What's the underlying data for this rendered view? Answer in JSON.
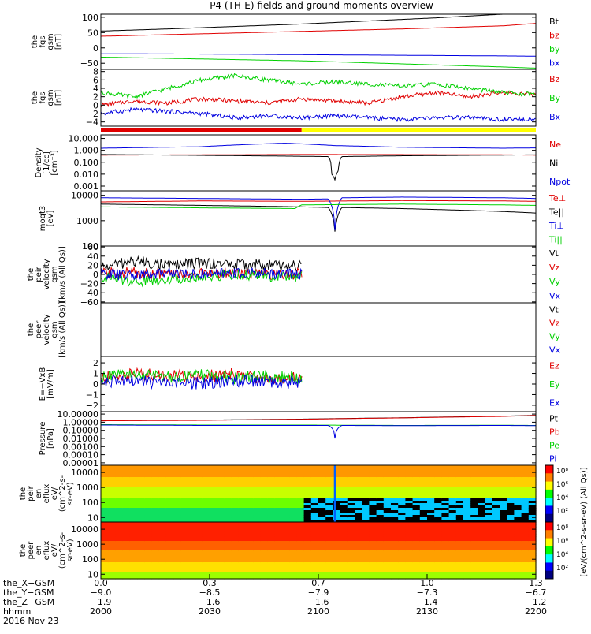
{
  "title": "P4 (TH-E) fields and ground moments overview",
  "date_label": "2016 Nov 23",
  "colors": {
    "black": "#000000",
    "red": "#e00000",
    "green": "#00d000",
    "blue": "#0000e0",
    "yellow": "#ffff00"
  },
  "chart_data": [
    {
      "id": "fgs",
      "type": "line",
      "ylabel": [
        "the",
        "fgs",
        "gsm",
        "[nT]"
      ],
      "ylim": [
        -70,
        110
      ],
      "yticks": [
        {
          "v": 100,
          "t": "100"
        },
        {
          "v": 50,
          "t": "50"
        },
        {
          "v": 0,
          "t": "0"
        },
        {
          "v": -50,
          "t": "−50"
        }
      ],
      "series": [
        {
          "name": "Bt",
          "color": "black",
          "x": [
            0,
            0.2,
            0.4,
            0.6,
            0.8,
            1.0,
            1.1,
            1.2
          ],
          "y": [
            55,
            62,
            70,
            78,
            88,
            98,
            104,
            110
          ]
        },
        {
          "name": "bz",
          "color": "red",
          "x": [
            0,
            0.3,
            0.6,
            0.9,
            1.2,
            1.3
          ],
          "y": [
            38,
            46,
            54,
            62,
            72,
            80
          ]
        },
        {
          "name": "by",
          "color": "green",
          "x": [
            0,
            0.3,
            0.6,
            0.9,
            1.2,
            1.3
          ],
          "y": [
            -30,
            -36,
            -42,
            -52,
            -62,
            -66
          ]
        },
        {
          "name": "bx",
          "color": "blue",
          "x": [
            0,
            0.3,
            0.6,
            0.9,
            1.2,
            1.3
          ],
          "y": [
            -19,
            -20,
            -22,
            -24,
            -26,
            -27
          ]
        }
      ]
    },
    {
      "id": "fgs_dsl",
      "type": "line",
      "ylabel": [
        "the",
        "fgs",
        "gsm",
        "[nT]"
      ],
      "ylim": [
        -5,
        8.5
      ],
      "yticks": [
        {
          "v": 8,
          "t": "8"
        },
        {
          "v": 6,
          "t": "6"
        },
        {
          "v": 4,
          "t": "4"
        },
        {
          "v": 2,
          "t": "2"
        },
        {
          "v": 0,
          "t": "0"
        },
        {
          "v": -2,
          "t": "−2"
        },
        {
          "v": -4,
          "t": "−4"
        }
      ],
      "series": [
        {
          "name": "Bz",
          "color": "red",
          "x": [
            0,
            0.1,
            0.2,
            0.3,
            0.4,
            0.5,
            0.6,
            0.7,
            0.8,
            0.9,
            1.0,
            1.1,
            1.2,
            1.3
          ],
          "y": [
            0,
            1,
            0.5,
            1.5,
            1,
            0.5,
            1.5,
            1,
            0.5,
            2,
            3,
            2,
            3,
            2.5
          ]
        },
        {
          "name": "By",
          "color": "green",
          "x": [
            0,
            0.1,
            0.2,
            0.3,
            0.4,
            0.5,
            0.6,
            0.7,
            0.8,
            0.9,
            1.0,
            1.1,
            1.2,
            1.3
          ],
          "y": [
            3,
            2,
            4,
            6,
            7,
            6,
            5,
            5.5,
            5,
            4.5,
            5,
            4,
            3,
            2.5
          ]
        },
        {
          "name": "Bx",
          "color": "blue",
          "x": [
            0,
            0.1,
            0.2,
            0.3,
            0.4,
            0.5,
            0.6,
            0.7,
            0.8,
            0.9,
            1.0,
            1.1,
            1.2,
            1.3
          ],
          "y": [
            -2,
            -1,
            -1.5,
            -2,
            -3,
            -2.5,
            -3,
            -2.5,
            -3,
            -3.5,
            -3,
            -3,
            -3.5,
            -3.2
          ]
        }
      ]
    },
    {
      "id": "density",
      "type": "line",
      "log": true,
      "ylabel": [
        "Density",
        "[1/cc]",
        "[cm⁻³]"
      ],
      "ylim": [
        0.0004,
        20
      ],
      "yticks": [
        {
          "v": 10,
          "t": "10.000"
        },
        {
          "v": 1,
          "t": "1.000"
        },
        {
          "v": 0.1,
          "t": "0.100"
        },
        {
          "v": 0.01,
          "t": "0.010"
        },
        {
          "v": 0.001,
          "t": "0.001"
        }
      ],
      "series": [
        {
          "name": "Ne",
          "color": "red",
          "x": [
            0,
            0.3,
            0.6,
            0.9,
            1.2,
            1.3
          ],
          "y": [
            0.4,
            0.42,
            0.45,
            0.44,
            0.42,
            0.4
          ]
        },
        {
          "name": "Ni",
          "color": "black",
          "x": [
            0,
            0.3,
            0.55,
            0.68,
            0.69,
            0.7,
            0.71,
            0.72,
            0.9,
            1.2,
            1.3
          ],
          "y": [
            0.45,
            0.38,
            0.33,
            0.3,
            0.01,
            0.003,
            0.02,
            0.3,
            0.35,
            0.4,
            0.42
          ]
        },
        {
          "name": "Npot",
          "color": "blue",
          "x": [
            0,
            0.3,
            0.55,
            0.7,
            0.9,
            1.2,
            1.3
          ],
          "y": [
            1.5,
            2,
            4,
            2.5,
            1.8,
            1.5,
            1.6
          ]
        }
      ]
    },
    {
      "id": "temp",
      "type": "line",
      "log": true,
      "ylabel": [
        "moqt3",
        "[eV]"
      ],
      "ylim": [
        100,
        15000
      ],
      "yticks": [
        {
          "v": 10000,
          "t": "10000"
        },
        {
          "v": 1000,
          "t": "1000"
        },
        {
          "v": 100,
          "t": "100"
        }
      ],
      "series": [
        {
          "name": "Te⊥",
          "color": "red",
          "x": [
            0,
            0.3,
            0.6,
            0.9,
            1.2,
            1.3
          ],
          "y": [
            5500,
            6000,
            5800,
            6200,
            6000,
            5800
          ]
        },
        {
          "name": "Te||",
          "color": "black",
          "x": [
            0,
            0.3,
            0.6,
            0.68,
            0.7,
            0.72,
            0.9,
            1.2,
            1.3
          ],
          "y": [
            4500,
            4000,
            3500,
            3300,
            300,
            3300,
            3000,
            2300,
            2000
          ]
        },
        {
          "name": "Ti⊥",
          "color": "blue",
          "x": [
            0,
            0.3,
            0.6,
            0.68,
            0.7,
            0.72,
            0.9,
            1.2,
            1.3
          ],
          "y": [
            8000,
            7500,
            7000,
            7200,
            250,
            8000,
            8500,
            8000,
            7500
          ]
        },
        {
          "name": "Ti||",
          "color": "green",
          "x": [
            0,
            0.3,
            0.58,
            0.6,
            0.9,
            1.2,
            1.3
          ],
          "y": [
            3500,
            3200,
            3000,
            4200,
            4500,
            4200,
            4000
          ]
        }
      ]
    },
    {
      "id": "peir_vel",
      "type": "line",
      "ylabel": [
        "the",
        "peir",
        "velocity",
        "gsm",
        "[km/s (All Qs)]"
      ],
      "ylim": [
        -62,
        62
      ],
      "yticks": [
        {
          "v": 60,
          "t": "60"
        },
        {
          "v": 40,
          "t": "40"
        },
        {
          "v": 20,
          "t": "20"
        },
        {
          "v": 0,
          "t": "0"
        },
        {
          "v": -20,
          "t": "−20"
        },
        {
          "v": -40,
          "t": "−40"
        },
        {
          "v": -60,
          "t": "−60"
        }
      ],
      "xmax_data": 0.6,
      "series": [
        {
          "name": "Vt",
          "color": "black",
          "x": [
            0,
            0.1,
            0.2,
            0.3,
            0.4,
            0.5,
            0.6
          ],
          "y": [
            15,
            30,
            20,
            25,
            22,
            20,
            18
          ]
        },
        {
          "name": "Vz",
          "color": "red",
          "x": [
            0,
            0.1,
            0.2,
            0.3,
            0.4,
            0.5,
            0.6
          ],
          "y": [
            3,
            5,
            0,
            2,
            4,
            -2,
            2
          ]
        },
        {
          "name": "Vy",
          "color": "green",
          "x": [
            0,
            0.1,
            0.2,
            0.3,
            0.4,
            0.5,
            0.6
          ],
          "y": [
            -5,
            -15,
            -10,
            -5,
            0,
            -3,
            -5
          ]
        },
        {
          "name": "Vx",
          "color": "blue",
          "x": [
            0,
            0.1,
            0.2,
            0.3,
            0.4,
            0.5,
            0.6
          ],
          "y": [
            2,
            -3,
            5,
            0,
            3,
            2,
            1
          ]
        }
      ]
    },
    {
      "id": "peer_vel",
      "type": "line",
      "ylabel": [
        "the",
        "peer",
        "velocity",
        "gsm",
        "[km/s (All Qs)]"
      ],
      "ylim": [
        0,
        1
      ],
      "yticks": [],
      "series": [
        {
          "name": "Vt",
          "color": "black"
        },
        {
          "name": "Vz",
          "color": "red"
        },
        {
          "name": "Vy",
          "color": "green"
        },
        {
          "name": "Vx",
          "color": "blue"
        }
      ]
    },
    {
      "id": "exb",
      "type": "line",
      "ylabel": [
        "E=−VxB",
        "[mV/m]"
      ],
      "ylim": [
        -2.6,
        2.6
      ],
      "yticks": [
        {
          "v": 2,
          "t": "2"
        },
        {
          "v": 1,
          "t": "1"
        },
        {
          "v": 0,
          "t": "0"
        },
        {
          "v": -1,
          "t": "−1"
        },
        {
          "v": -2,
          "t": "−2"
        }
      ],
      "xmax_data": 0.6,
      "series": [
        {
          "name": "Ez",
          "color": "red",
          "x": [
            0,
            0.1,
            0.2,
            0.3,
            0.4,
            0.5,
            0.6
          ],
          "y": [
            0.5,
            1,
            0.8,
            0.7,
            0.9,
            0.5,
            0.8
          ]
        },
        {
          "name": "Ey",
          "color": "green",
          "x": [
            0,
            0.1,
            0.2,
            0.3,
            0.4,
            0.5,
            0.6
          ],
          "y": [
            0.6,
            0.9,
            0.7,
            0.8,
            0.6,
            0.7,
            0.5
          ]
        },
        {
          "name": "Ex",
          "color": "blue",
          "x": [
            0,
            0.1,
            0.2,
            0.3,
            0.4,
            0.5,
            0.6
          ],
          "y": [
            0.2,
            0.3,
            0,
            0.1,
            0.3,
            0.2,
            0.1
          ]
        }
      ]
    },
    {
      "id": "pressure",
      "type": "line",
      "log": true,
      "ylabel": [
        "Pressure",
        "[nPa]"
      ],
      "ylim": [
        5e-06,
        20
      ],
      "yticks": [
        {
          "v": 10,
          "t": "10.00000"
        },
        {
          "v": 1,
          "t": "1.00000"
        },
        {
          "v": 0.1,
          "t": "0.10000"
        },
        {
          "v": 0.01,
          "t": "0.01000"
        },
        {
          "v": 0.001,
          "t": "0.00100"
        },
        {
          "v": 0.0001,
          "t": "0.00010"
        },
        {
          "v": 1e-05,
          "t": "0.00001"
        }
      ],
      "series": [
        {
          "name": "Pt",
          "color": "black",
          "x": [
            0,
            0.3,
            0.6,
            0.9,
            1.2,
            1.3
          ],
          "y": [
            1.6,
            1.8,
            2.4,
            3.5,
            5.5,
            7
          ]
        },
        {
          "name": "Pb",
          "color": "red",
          "x": [
            0,
            0.3,
            0.6,
            0.9,
            1.2,
            1.3
          ],
          "y": [
            1.5,
            1.7,
            2.3,
            3.4,
            5.2,
            6.8
          ]
        },
        {
          "name": "Pe",
          "color": "green",
          "x": [
            0,
            0.3,
            0.6,
            0.9,
            1.2,
            1.3
          ],
          "y": [
            0.5,
            0.45,
            0.45,
            0.4,
            0.42,
            0.4
          ]
        },
        {
          "name": "Pi",
          "color": "blue",
          "x": [
            0,
            0.3,
            0.6,
            0.68,
            0.7,
            0.72,
            0.9,
            1.2,
            1.3
          ],
          "y": [
            0.45,
            0.4,
            0.4,
            0.4,
            0.0005,
            0.4,
            0.38,
            0.4,
            0.38
          ]
        }
      ]
    },
    {
      "id": "peir_eflux",
      "type": "heatmap",
      "log": true,
      "ylabel": [
        "the",
        "peir",
        "en",
        "eflux",
        "eV/",
        "(cm^2-s-",
        "sr-eV)"
      ],
      "ylim": [
        5,
        30000
      ],
      "yticks": [
        {
          "v": 10000,
          "t": "10000"
        },
        {
          "v": 1000,
          "t": "1000"
        },
        {
          "v": 100,
          "t": "100"
        },
        {
          "v": 10,
          "t": "10"
        }
      ]
    },
    {
      "id": "peer_eflux",
      "type": "heatmap",
      "log": true,
      "ylabel": [
        "the",
        "peer",
        "en",
        "eflux",
        "eV/",
        "(cm^2-s-",
        "sr-eV)"
      ],
      "ylim": [
        5,
        30000
      ],
      "yticks": [
        {
          "v": 10000,
          "t": "10000"
        },
        {
          "v": 1000,
          "t": "1000"
        },
        {
          "v": 100,
          "t": "100"
        },
        {
          "v": 10,
          "t": "10"
        }
      ]
    }
  ],
  "colorbar": {
    "label": "[eV/(cm^2-s-sr-eV) (All Qs)]",
    "ticks_top": [
      "10⁸",
      "10⁶",
      "10⁴",
      "10²"
    ],
    "ticks_bottom": [
      "10⁸",
      "10⁶",
      "10⁴",
      "10²"
    ]
  },
  "x_axis": {
    "xlim": [
      0,
      1.3
    ],
    "ticks": [
      0,
      0.325,
      0.65,
      0.975,
      1.3
    ],
    "row_labels": [
      "the_X−GSM",
      "the_Y−GSM",
      "the_Z−GSM",
      "hhmm"
    ],
    "columns": [
      {
        "top": "0.0",
        "rows": [
          "−9.0",
          "−1.9",
          "2000"
        ]
      },
      {
        "top": "0.3",
        "rows": [
          "−8.5",
          "−1.6",
          "2030"
        ]
      },
      {
        "top": "0.7",
        "rows": [
          "−7.9",
          "−1.6",
          "2100"
        ]
      },
      {
        "top": "1.0",
        "rows": [
          "−7.3",
          "−1.4",
          "2130"
        ]
      },
      {
        "top": "1.3",
        "rows": [
          "−6.7",
          "−1.2",
          "2200"
        ]
      }
    ]
  }
}
